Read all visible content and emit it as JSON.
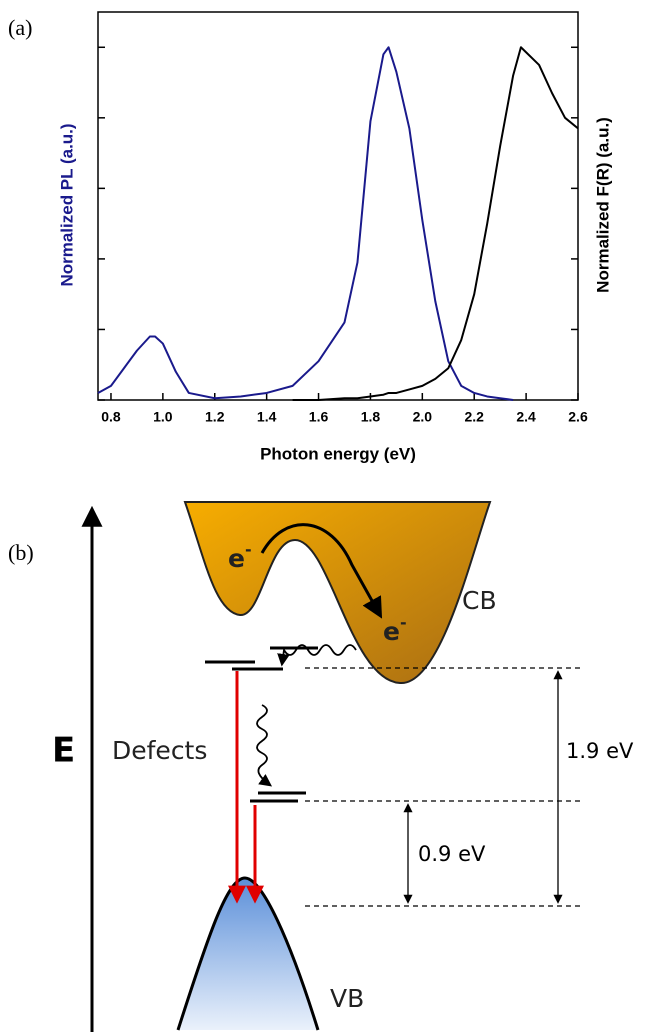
{
  "panel_a_label": "(a)",
  "chart_data": {
    "type": "line",
    "xlabel": "Photon energy (eV)",
    "ylabel": "Normalized PL (a.u.)",
    "y2label": "Normalized F(R) (a.u.)",
    "x": [
      0.75,
      0.8,
      0.85,
      0.9,
      0.95,
      0.97,
      1.0,
      1.05,
      1.1,
      1.2,
      1.3,
      1.4,
      1.5,
      1.6,
      1.7,
      1.75,
      1.8,
      1.85,
      1.87,
      1.9,
      1.95,
      2.0,
      2.05,
      2.1,
      2.15,
      2.2,
      2.25,
      2.3,
      2.35,
      2.38,
      2.45,
      2.5,
      2.55,
      2.6
    ],
    "series": [
      {
        "color": "#1a1a8c",
        "values": [
          0.02,
          0.04,
          0.09,
          0.14,
          0.18,
          0.18,
          0.16,
          0.08,
          0.02,
          0.005,
          0.01,
          0.02,
          0.04,
          0.11,
          0.22,
          0.39,
          0.79,
          0.98,
          1.0,
          0.93,
          0.77,
          0.51,
          0.28,
          0.11,
          0.04,
          0.02,
          0.01,
          0.005,
          0,
          null,
          null,
          null,
          null,
          null
        ]
      },
      {
        "color": "#000000",
        "axis": "y2",
        "values": [
          null,
          null,
          null,
          null,
          null,
          null,
          null,
          null,
          null,
          null,
          null,
          null,
          0,
          0,
          0.005,
          0.005,
          0.01,
          0.015,
          0.02,
          0.02,
          0.03,
          0.04,
          0.06,
          0.09,
          0.17,
          0.3,
          0.5,
          0.72,
          0.92,
          1.0,
          0.95,
          0.87,
          0.8,
          0.77
        ]
      }
    ],
    "xlim": [
      0.75,
      2.6
    ],
    "xticks": [
      0.8,
      {
        "value": 1,
        "label": "1.0"
      },
      1.2,
      1.4,
      1.6,
      1.8,
      {
        "value": 2,
        "label": "2.0"
      },
      2.2,
      2.4,
      2.6
    ],
    "ylim": [
      0,
      1.1
    ],
    "yticks": [
      0,
      0.2,
      0.4,
      0.6,
      0.8,
      1
    ],
    "y2lim": [
      0,
      1.1
    ],
    "y2ticks": [
      0,
      0.2,
      0.4,
      0.6,
      0.8,
      1
    ]
  },
  "panel_b_label": "(b)",
  "diagram": {
    "axis_label": "E",
    "electron": "e",
    "charge": "-",
    "cb_label": "CB",
    "defects_label": "Defects",
    "vb_label": "VB",
    "gap_large": "1.9 eV",
    "gap_small": "0.9 eV"
  }
}
